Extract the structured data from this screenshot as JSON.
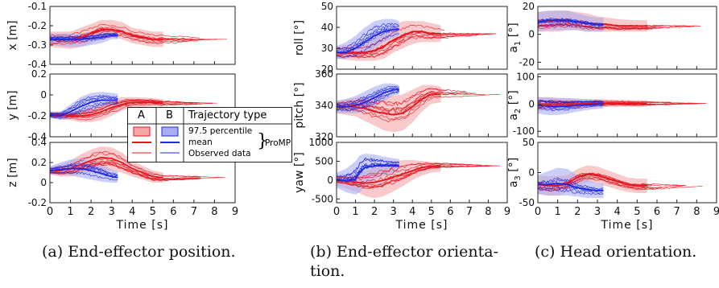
{
  "colors": {
    "A": "#e8141e",
    "A_fill": "#f5a6a8",
    "B": "#1e28e0",
    "B_fill": "#a9aef2"
  },
  "captions": {
    "a": "(a) End-effector position.",
    "b1": "(b) End-effector orienta-",
    "b2": "tion.",
    "c": "(c) Head orientation."
  },
  "legend": {
    "col_a": "A",
    "col_b": "B",
    "col_type": "Trajectory type",
    "row1": "97.5 percentile",
    "row2": "mean",
    "row3": "Observed data",
    "group": "ProMP"
  },
  "chart_data": [
    {
      "id": "x",
      "type": "line",
      "ylabel": "x [m]",
      "xlabel": "",
      "xlim": [
        0,
        9
      ],
      "ylim": [
        -0.4,
        -0.1
      ],
      "yticks": [
        "-0.1",
        "-0.2",
        "-0.3",
        "-0.4"
      ],
      "ytick_vals": [
        -0.1,
        -0.2,
        -0.3,
        -0.4
      ],
      "xticks": [],
      "series": [
        {
          "name": "A",
          "x": [
            0,
            1,
            1.5,
            2,
            2.5,
            3,
            3.5,
            4,
            5,
            5.5
          ],
          "mean": [
            -0.27,
            -0.27,
            -0.26,
            -0.24,
            -0.22,
            -0.22,
            -0.23,
            -0.25,
            -0.27,
            -0.27
          ],
          "lo": [
            -0.31,
            -0.32,
            -0.31,
            -0.29,
            -0.27,
            -0.26,
            -0.27,
            -0.29,
            -0.31,
            -0.31
          ],
          "hi": [
            -0.23,
            -0.23,
            -0.21,
            -0.19,
            -0.17,
            -0.17,
            -0.18,
            -0.21,
            -0.23,
            -0.23
          ]
        },
        {
          "name": "B",
          "x": [
            0,
            1,
            1.5,
            2,
            2.5,
            3,
            3.3
          ],
          "mean": [
            -0.27,
            -0.27,
            -0.27,
            -0.265,
            -0.26,
            -0.25,
            -0.25
          ],
          "lo": [
            -0.3,
            -0.31,
            -0.31,
            -0.3,
            -0.29,
            -0.27,
            -0.27
          ],
          "hi": [
            -0.24,
            -0.24,
            -0.24,
            -0.23,
            -0.22,
            -0.22,
            -0.22
          ]
        }
      ]
    },
    {
      "id": "y",
      "type": "line",
      "ylabel": "y [m]",
      "xlabel": "",
      "xlim": [
        0,
        9
      ],
      "ylim": [
        -0.4,
        0.2
      ],
      "yticks": [
        "0.2",
        "0",
        "-0.2",
        "-0.4"
      ],
      "ytick_vals": [
        0.2,
        0,
        -0.2,
        -0.4
      ],
      "xticks": [],
      "series": [
        {
          "name": "A",
          "x": [
            0,
            1,
            1.5,
            2,
            2.5,
            3,
            3.5,
            4,
            5,
            5.5
          ],
          "mean": [
            -0.19,
            -0.2,
            -0.2,
            -0.19,
            -0.16,
            -0.12,
            -0.09,
            -0.07,
            -0.07,
            -0.08
          ],
          "lo": [
            -0.22,
            -0.24,
            -0.26,
            -0.26,
            -0.24,
            -0.2,
            -0.15,
            -0.12,
            -0.11,
            -0.11
          ],
          "hi": [
            -0.16,
            -0.16,
            -0.14,
            -0.12,
            -0.08,
            -0.04,
            -0.02,
            -0.02,
            -0.03,
            -0.04
          ]
        },
        {
          "name": "B",
          "x": [
            0,
            0.5,
            1,
            1.5,
            2,
            2.5,
            3,
            3.3
          ],
          "mean": [
            -0.19,
            -0.2,
            -0.16,
            -0.11,
            -0.07,
            -0.05,
            -0.05,
            -0.05
          ],
          "lo": [
            -0.22,
            -0.24,
            -0.23,
            -0.2,
            -0.16,
            -0.12,
            -0.1,
            -0.1
          ],
          "hi": [
            -0.16,
            -0.16,
            -0.09,
            -0.02,
            0.02,
            0.03,
            0.02,
            0.01
          ]
        }
      ]
    },
    {
      "id": "z",
      "type": "line",
      "ylabel": "z [m]",
      "xlabel": "Time [s]",
      "xlim": [
        0,
        9
      ],
      "ylim": [
        -0.2,
        0.4
      ],
      "yticks": [
        "0.4",
        "0.2",
        "0",
        "-0.2"
      ],
      "ytick_vals": [
        0.4,
        0.2,
        0,
        -0.2
      ],
      "xticks": [
        "0",
        "1",
        "2",
        "3",
        "4",
        "5",
        "6",
        "7",
        "8",
        "9"
      ],
      "series": [
        {
          "name": "A",
          "x": [
            0,
            0.5,
            1,
            1.5,
            2,
            2.5,
            3,
            3.5,
            4,
            5,
            5.5
          ],
          "mean": [
            0.12,
            0.12,
            0.14,
            0.18,
            0.22,
            0.25,
            0.24,
            0.2,
            0.14,
            0.06,
            0.05
          ],
          "lo": [
            0.08,
            0.06,
            0.06,
            0.08,
            0.1,
            0.12,
            0.12,
            0.1,
            0.06,
            0.0,
            0.0
          ],
          "hi": [
            0.16,
            0.18,
            0.22,
            0.28,
            0.33,
            0.36,
            0.35,
            0.3,
            0.22,
            0.12,
            0.1
          ]
        },
        {
          "name": "B",
          "x": [
            0,
            0.5,
            1,
            1.5,
            2,
            2.5,
            3,
            3.3
          ],
          "mean": [
            0.12,
            0.13,
            0.14,
            0.14,
            0.12,
            0.09,
            0.06,
            0.05
          ],
          "lo": [
            0.08,
            0.08,
            0.07,
            0.05,
            0.03,
            0.01,
            0.0,
            0.0
          ],
          "hi": [
            0.16,
            0.2,
            0.23,
            0.24,
            0.22,
            0.18,
            0.13,
            0.11
          ]
        }
      ]
    },
    {
      "id": "roll",
      "type": "line",
      "ylabel": "roll [°]",
      "xlabel": "",
      "xlim": [
        0,
        9
      ],
      "ylim": [
        20,
        50
      ],
      "yticks": [
        "50",
        "40",
        "30",
        "20"
      ],
      "ytick_vals": [
        50,
        40,
        30,
        20
      ],
      "xticks": [],
      "series": [
        {
          "name": "A",
          "x": [
            0,
            1,
            1.5,
            2,
            2.5,
            3,
            3.5,
            4,
            4.5,
            5,
            5.5
          ],
          "mean": [
            28,
            28,
            28,
            29,
            31,
            34,
            36,
            38,
            38,
            37,
            37
          ],
          "lo": [
            25,
            24,
            24,
            24,
            25,
            28,
            30,
            32,
            33,
            33,
            33
          ],
          "hi": [
            31,
            32,
            33,
            35,
            38,
            41,
            43,
            43,
            43,
            42,
            41
          ]
        },
        {
          "name": "B",
          "x": [
            0,
            0.5,
            1,
            1.5,
            2,
            2.5,
            3,
            3.3
          ],
          "mean": [
            28,
            28,
            30,
            33,
            36,
            38,
            39,
            39
          ],
          "lo": [
            25,
            25,
            26,
            27,
            30,
            33,
            35,
            36
          ],
          "hi": [
            31,
            33,
            36,
            40,
            43,
            44,
            44,
            43
          ]
        }
      ]
    },
    {
      "id": "pitch",
      "type": "line",
      "ylabel": "pitch [°]",
      "xlabel": "",
      "xlim": [
        0,
        9
      ],
      "ylim": [
        320,
        360
      ],
      "yticks": [
        "360",
        "340",
        "320"
      ],
      "ytick_vals": [
        360,
        340,
        320
      ],
      "xticks": [],
      "series": [
        {
          "name": "A",
          "x": [
            0,
            1,
            1.5,
            2,
            2.5,
            3,
            3.5,
            4,
            4.5,
            5,
            5.5
          ],
          "mean": [
            339,
            339,
            338,
            336,
            335,
            334,
            335,
            339,
            344,
            347,
            347
          ],
          "lo": [
            335,
            333,
            330,
            327,
            324,
            323,
            324,
            329,
            336,
            341,
            342
          ],
          "hi": [
            343,
            345,
            346,
            346,
            346,
            346,
            347,
            350,
            353,
            353,
            352
          ]
        },
        {
          "name": "B",
          "x": [
            0,
            0.5,
            1,
            1.5,
            2,
            2.5,
            3,
            3.3
          ],
          "mean": [
            339,
            339,
            340,
            342,
            345,
            348,
            350,
            350
          ],
          "lo": [
            335,
            335,
            335,
            336,
            339,
            343,
            346,
            347
          ],
          "hi": [
            343,
            344,
            346,
            349,
            352,
            354,
            354,
            353
          ]
        }
      ]
    },
    {
      "id": "yaw",
      "type": "line",
      "ylabel": "yaw [°]",
      "xlabel": "Time [s]",
      "xlim": [
        0,
        9
      ],
      "ylim": [
        -600,
        1000
      ],
      "yticks": [
        "1000",
        "500",
        "0",
        "-500"
      ],
      "ytick_vals": [
        1000,
        500,
        0,
        -500
      ],
      "xticks": [
        "0",
        "1",
        "2",
        "3",
        "4",
        "5",
        "6",
        "7",
        "8",
        "9"
      ],
      "series": [
        {
          "name": "A",
          "x": [
            0,
            1,
            1.5,
            2,
            2.5,
            3,
            3.5,
            4,
            4.5,
            5,
            5.5
          ],
          "mean": [
            0,
            -60,
            -80,
            -60,
            0,
            80,
            160,
            250,
            330,
            370,
            380
          ],
          "lo": [
            -150,
            -300,
            -420,
            -480,
            -420,
            -300,
            -160,
            0,
            120,
            200,
            230
          ],
          "hi": [
            150,
            180,
            240,
            330,
            420,
            500,
            530,
            530,
            510,
            480,
            470
          ]
        },
        {
          "name": "B",
          "x": [
            0,
            0.5,
            1,
            1.2,
            1.5,
            2,
            2.5,
            3,
            3.3
          ],
          "mean": [
            0,
            -20,
            20,
            200,
            330,
            380,
            380,
            380,
            380
          ],
          "lo": [
            -200,
            -320,
            -380,
            -330,
            -180,
            20,
            120,
            180,
            200
          ],
          "hi": [
            200,
            300,
            500,
            650,
            700,
            680,
            620,
            580,
            560
          ]
        }
      ]
    },
    {
      "id": "a1",
      "type": "line",
      "ylabel": "a_1 [°]",
      "xlabel": "",
      "xlim": [
        0,
        9
      ],
      "ylim": [
        -25,
        20
      ],
      "yticks": [
        "20",
        "0",
        "-20"
      ],
      "ytick_vals": [
        20,
        0,
        -20
      ],
      "xticks": [],
      "series": [
        {
          "name": "A",
          "x": [
            0,
            1,
            1.5,
            2,
            2.5,
            3,
            3.5,
            4,
            5,
            5.5
          ],
          "mean": [
            9,
            10,
            10,
            9,
            8,
            7,
            7,
            6,
            6,
            6
          ],
          "lo": [
            2,
            2,
            3,
            3,
            2,
            2,
            2,
            2,
            2,
            2
          ],
          "hi": [
            16,
            17,
            17,
            16,
            15,
            13,
            12,
            11,
            10,
            10
          ]
        },
        {
          "name": "B",
          "x": [
            0,
            0.5,
            1,
            1.5,
            2,
            2.5,
            3,
            3.3
          ],
          "mean": [
            9,
            10,
            10,
            10,
            9,
            8,
            7,
            7
          ],
          "lo": [
            2,
            3,
            3,
            3,
            3,
            2,
            2,
            2
          ],
          "hi": [
            16,
            17,
            17,
            17,
            15,
            13,
            12,
            12
          ]
        }
      ]
    },
    {
      "id": "a2",
      "type": "line",
      "ylabel": "a_2 [°]",
      "xlabel": "",
      "xlim": [
        0,
        9
      ],
      "ylim": [
        -120,
        110
      ],
      "yticks": [
        "100",
        "0",
        "-100"
      ],
      "ytick_vals": [
        100,
        0,
        -100
      ],
      "xticks": [],
      "series": [
        {
          "name": "A",
          "x": [
            0,
            1,
            1.5,
            2,
            2.5,
            3,
            3.5,
            4,
            5,
            5.5
          ],
          "mean": [
            0,
            0,
            0,
            1,
            2,
            3,
            3,
            3,
            2,
            2
          ],
          "lo": [
            -25,
            -22,
            -18,
            -15,
            -13,
            -12,
            -11,
            -10,
            -10,
            -10
          ],
          "hi": [
            25,
            22,
            20,
            18,
            18,
            18,
            17,
            16,
            14,
            14
          ]
        },
        {
          "name": "B",
          "x": [
            0,
            0.5,
            1,
            1.5,
            2,
            2.5,
            3,
            3.3
          ],
          "mean": [
            -5,
            -8,
            -10,
            -8,
            -5,
            -2,
            0,
            0
          ],
          "lo": [
            -35,
            -40,
            -40,
            -35,
            -28,
            -22,
            -18,
            -16
          ],
          "hi": [
            25,
            25,
            22,
            22,
            20,
            18,
            16,
            16
          ]
        }
      ]
    },
    {
      "id": "a3",
      "type": "line",
      "ylabel": "a_3 [°]",
      "xlabel": "Time [s]",
      "xlim": [
        0,
        9
      ],
      "ylim": [
        -50,
        50
      ],
      "yticks": [
        "50",
        "0",
        "-50"
      ],
      "ytick_vals": [
        50,
        0,
        -50
      ],
      "xticks": [
        "0",
        "1",
        "2",
        "3",
        "4",
        "5",
        "6",
        "7",
        "8",
        "9"
      ],
      "series": [
        {
          "name": "A",
          "x": [
            0,
            0.5,
            1,
            1.5,
            2,
            2.5,
            3,
            3.5,
            4,
            4.5,
            5,
            5.5
          ],
          "mean": [
            -20,
            -22,
            -22,
            -18,
            -8,
            -3,
            -5,
            -10,
            -15,
            -20,
            -22,
            -22
          ],
          "lo": [
            -35,
            -38,
            -38,
            -32,
            -22,
            -16,
            -18,
            -23,
            -28,
            -32,
            -34,
            -34
          ],
          "hi": [
            -5,
            -6,
            -6,
            -4,
            6,
            12,
            10,
            4,
            -2,
            -8,
            -10,
            -10
          ]
        },
        {
          "name": "B",
          "x": [
            0,
            0.5,
            1,
            1.5,
            2,
            2.5,
            3,
            3.3
          ],
          "mean": [
            -20,
            -20,
            -18,
            -20,
            -25,
            -28,
            -30,
            -30
          ],
          "lo": [
            -36,
            -38,
            -38,
            -38,
            -40,
            -42,
            -42,
            -42
          ],
          "hi": [
            -4,
            2,
            8,
            6,
            -5,
            -12,
            -18,
            -18
          ]
        }
      ]
    }
  ]
}
